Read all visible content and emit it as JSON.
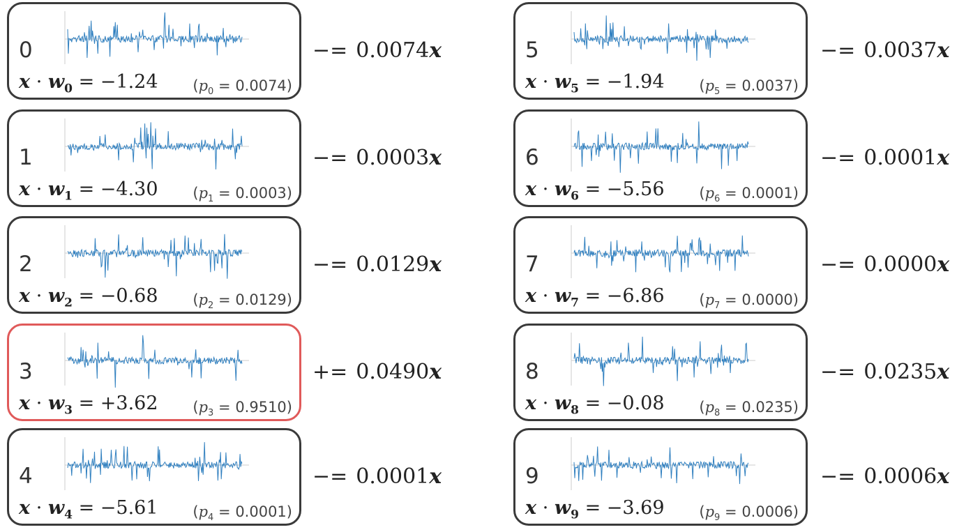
{
  "panels": [
    {
      "index": "0",
      "subscript": "0",
      "dot_value": "−1.24",
      "prob": "0.0074",
      "op": "−=",
      "update": "0.0074",
      "highlighted": false
    },
    {
      "index": "1",
      "subscript": "1",
      "dot_value": "−4.30",
      "prob": "0.0003",
      "op": "−=",
      "update": "0.0003",
      "highlighted": false
    },
    {
      "index": "2",
      "subscript": "2",
      "dot_value": "−0.68",
      "prob": "0.0129",
      "op": "−=",
      "update": "0.0129",
      "highlighted": false
    },
    {
      "index": "3",
      "subscript": "3",
      "dot_value": "+3.62",
      "prob": "0.9510",
      "op": "+=",
      "update": "0.0490",
      "highlighted": true
    },
    {
      "index": "4",
      "subscript": "4",
      "dot_value": "−5.61",
      "prob": "0.0001",
      "op": "−=",
      "update": "0.0001",
      "highlighted": false
    },
    {
      "index": "5",
      "subscript": "5",
      "dot_value": "−1.94",
      "prob": "0.0037",
      "op": "−=",
      "update": "0.0037",
      "highlighted": false
    },
    {
      "index": "6",
      "subscript": "6",
      "dot_value": "−5.56",
      "prob": "0.0001",
      "op": "−=",
      "update": "0.0001",
      "highlighted": false
    },
    {
      "index": "7",
      "subscript": "7",
      "dot_value": "−6.86",
      "prob": "0.0000",
      "op": "−=",
      "update": "0.0000",
      "highlighted": false
    },
    {
      "index": "8",
      "subscript": "8",
      "dot_value": "−0.08",
      "prob": "0.0235",
      "op": "−=",
      "update": "0.0235",
      "highlighted": false
    },
    {
      "index": "9",
      "subscript": "9",
      "dot_value": "−3.69",
      "prob": "0.0006",
      "op": "−=",
      "update": "0.0006",
      "highlighted": false
    }
  ],
  "symbols": {
    "x": "x",
    "w": "w",
    "p": "p",
    "dot": "·",
    "eq": "=",
    "open": "(",
    "close": ")"
  },
  "colors": {
    "card_border": "#3a3a3a",
    "highlight_border": "#e05a5a",
    "spark_line": "#2f7fbf",
    "axis": "#cccccc"
  }
}
